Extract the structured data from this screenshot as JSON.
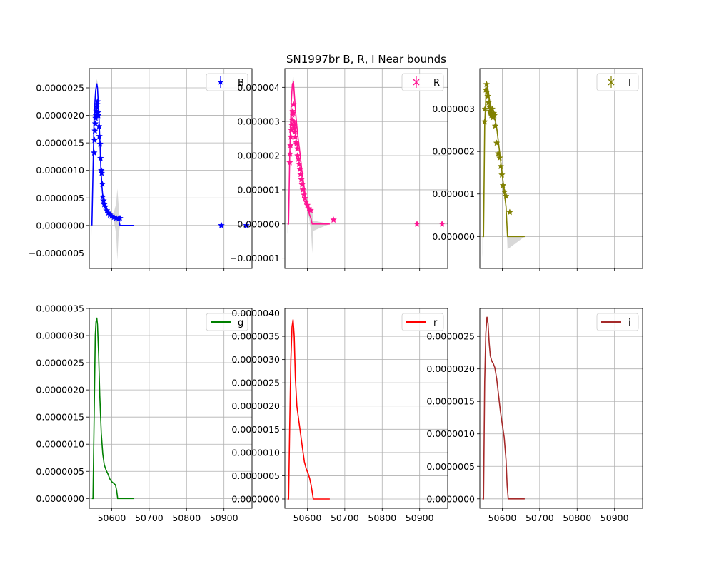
{
  "figure": {
    "title": "SN1997br  B, R, I Near bounds"
  },
  "chart_data": [
    {
      "type": "line",
      "panel": "top-left",
      "legend": "top-right",
      "grid": true,
      "xlim": [
        50540,
        50975
      ],
      "ylim": [
        -7.8e-07,
        2.85e-06
      ],
      "xticks": [
        50600,
        50700,
        50800,
        50900
      ],
      "show_xticklabels": false,
      "yticks": [
        -5e-07,
        0,
        5e-07,
        1e-06,
        1.5e-06,
        2e-06,
        2.5e-06
      ],
      "ytick_labels": [
        "−0.0000005",
        "0.0000000",
        "0.0000005",
        "0.0000010",
        "0.0000015",
        "0.0000020",
        "0.0000025"
      ],
      "series": [
        {
          "name": "B",
          "color": "#0000ff",
          "marker_style": "errorbar",
          "model": {
            "x": [
              50547,
              50553,
              50557,
              50560,
              50562,
              50565,
              50568,
              50571,
              50574,
              50577,
              50580,
              50585,
              50590,
              50595,
              50600,
              50605,
              50612,
              50618,
              50622,
              50660
            ],
            "y": [
              0,
              2e-06,
              2.45e-06,
              2.58e-06,
              2.5e-06,
              2.1e-06,
              1.6e-06,
              1.05e-06,
              7e-07,
              4.6e-07,
              3.6e-07,
              2.8e-07,
              2.3e-07,
              2e-07,
              1.8e-07,
              1.6e-07,
              1.4e-07,
              1.2e-07,
              0,
              0
            ]
          },
          "band": {
            "x": [
              50547,
              50553,
              50557,
              50560,
              50562,
              50565,
              50568,
              50571,
              50574,
              50577,
              50580,
              50585,
              50590,
              50595,
              50600,
              50605,
              50612,
              50615,
              50618,
              50622,
              50660
            ],
            "lower": [
              -2e-07,
              1.9e-06,
              2.35e-06,
              2.5e-06,
              2.4e-06,
              2e-06,
              1.5e-06,
              1e-06,
              6.5e-07,
              4.3e-07,
              3.3e-07,
              2.5e-07,
              2e-07,
              1.7e-07,
              1.4e-07,
              1e-07,
              -1.5e-07,
              -6.3e-07,
              -2e-07,
              0,
              0
            ],
            "upper": [
              1e-08,
              2.1e-06,
              2.55e-06,
              2.66e-06,
              2.6e-06,
              2.2e-06,
              1.7e-06,
              1.1e-06,
              7.5e-07,
              4.9e-07,
              3.9e-07,
              3.1e-07,
              2.6e-07,
              2.3e-07,
              2.2e-07,
              2.2e-07,
              4e-07,
              6.7e-07,
              4e-07,
              0,
              0
            ]
          },
          "points": {
            "x": [
              50553,
              50554,
              50555,
              50556,
              50557,
              50558,
              50559,
              50560,
              50561,
              50562,
              50563,
              50564,
              50566,
              50567,
              50569,
              50570,
              50572,
              50573,
              50575,
              50576,
              50578,
              50580,
              50583,
              50587,
              50591,
              50595,
              50600,
              50606,
              50612,
              50618,
              50622,
              50893,
              50960
            ],
            "y": [
              1.32e-06,
              1.55e-06,
              1.72e-06,
              1.85e-06,
              1.95e-06,
              2e-06,
              2.08e-06,
              2.15e-06,
              2.2e-06,
              2.25e-06,
              2.05e-06,
              2e-06,
              1.8e-06,
              1.62e-06,
              1.48e-06,
              1.22e-06,
              1e-06,
              9.5e-07,
              7.5e-07,
              5.2e-07,
              4.5e-07,
              3.8e-07,
              3.4e-07,
              2.7e-07,
              2.3e-07,
              1.9e-07,
              1.7e-07,
              1.5e-07,
              1.35e-07,
              1.2e-07,
              1.3e-07,
              0,
              0
            ]
          }
        }
      ]
    },
    {
      "type": "line",
      "panel": "top-middle",
      "legend": "top-right",
      "grid": true,
      "xlim": [
        50540,
        50975
      ],
      "ylim": [
        -1.3e-06,
        4.55e-06
      ],
      "xticks": [
        50600,
        50700,
        50800,
        50900
      ],
      "show_xticklabels": false,
      "yticks": [
        -1e-06,
        0,
        1e-06,
        2e-06,
        3e-06,
        4e-06
      ],
      "ytick_labels": [
        "−0.000001",
        "0.000000",
        "0.000001",
        "0.000002",
        "0.000003",
        "0.000004"
      ],
      "series": [
        {
          "name": "R",
          "color": "#ff1493",
          "marker_style": "x",
          "model": {
            "x": [
              50547,
              50550,
              50553,
              50557,
              50560,
              50563,
              50566,
              50570,
              50575,
              50580,
              50585,
              50590,
              50595,
              50600,
              50605,
              50610,
              50613,
              50616,
              50660
            ],
            "y": [
              0,
              0,
              2e-06,
              3.55e-06,
              4.1e-06,
              4.15e-06,
              3.7e-06,
              3.1e-06,
              2.55e-06,
              2.1e-06,
              1.6e-06,
              1.2e-06,
              8e-07,
              5e-07,
              3e-07,
              1.5e-07,
              0,
              0,
              0
            ]
          },
          "band": {
            "x": [
              50547,
              50550,
              50553,
              50557,
              50560,
              50563,
              50566,
              50570,
              50575,
              50580,
              50585,
              50590,
              50595,
              50600,
              50605,
              50610,
              50613,
              50616,
              50660
            ],
            "lower": [
              -3e-07,
              0,
              1.9e-06,
              3.45e-06,
              4e-06,
              4.05e-06,
              3.6e-06,
              3e-06,
              2.45e-06,
              2e-06,
              1.5e-06,
              1.1e-06,
              7e-07,
              4e-07,
              1.5e-07,
              -2e-07,
              -8.5e-07,
              -2e-07,
              0
            ],
            "upper": [
              0,
              0,
              2.1e-06,
              3.65e-06,
              4.2e-06,
              4.3e-06,
              3.8e-06,
              3.2e-06,
              2.65e-06,
              2.2e-06,
              1.7e-06,
              1.3e-06,
              9e-07,
              6e-07,
              4.5e-07,
              5e-07,
              4e-07,
              1e-07,
              0
            ]
          },
          "points": {
            "x": [
              50553,
              50554,
              50555,
              50556,
              50557,
              50558,
              50559,
              50560,
              50561,
              50562,
              50563,
              50564,
              50565,
              50566,
              50567,
              50568,
              50570,
              50571,
              50573,
              50574,
              50576,
              50578,
              50580,
              50582,
              50584,
              50586,
              50588,
              50591,
              50594,
              50597,
              50600,
              50604,
              50609,
              50670,
              50893,
              50960
            ],
            "y": [
              1.8e-06,
              2.05e-06,
              2.3e-06,
              2.55e-06,
              2.75e-06,
              2.9e-06,
              3.05e-06,
              3.2e-06,
              3.3e-06,
              3.25e-06,
              3.5e-06,
              3e-06,
              2.8e-06,
              2.9e-06,
              2.7e-06,
              2.55e-06,
              2.4e-06,
              2.35e-06,
              2.2e-06,
              2e-06,
              1.9e-06,
              1.75e-06,
              1.6e-06,
              1.45e-06,
              1.3e-06,
              1.15e-06,
              1e-06,
              8.5e-07,
              7.5e-07,
              6.5e-07,
              5.5e-07,
              4.5e-07,
              4e-07,
              1.2e-07,
              0,
              0
            ]
          }
        }
      ]
    },
    {
      "type": "line",
      "panel": "top-right",
      "legend": "top-right",
      "grid": true,
      "xlim": [
        50540,
        50975
      ],
      "ylim": [
        -7.5e-07,
        3.95e-06
      ],
      "xticks": [
        50600,
        50700,
        50800,
        50900
      ],
      "show_xticklabels": false,
      "yticks": [
        0,
        1e-06,
        2e-06,
        3e-06
      ],
      "ytick_labels": [
        "0.000000",
        "0.000001",
        "0.000002",
        "0.000003"
      ],
      "series": [
        {
          "name": "I",
          "color": "#808000",
          "marker_style": "x",
          "model": {
            "x": [
              50547,
              50550,
              50553,
              50557,
              50560,
              50563,
              50566,
              50570,
              50574,
              50578,
              50582,
              50586,
              50590,
              50594,
              50598,
              50602,
              50606,
              50610,
              50614,
              50660
            ],
            "y": [
              0,
              0,
              2.6e-06,
              3.45e-06,
              3.52e-06,
              3.4e-06,
              3.2e-06,
              3e-06,
              2.9e-06,
              2.85e-06,
              2.7e-06,
              2.5e-06,
              2.2e-06,
              1.9e-06,
              1.6e-06,
              1.3e-06,
              1e-06,
              7e-07,
              0,
              0
            ]
          },
          "band": {
            "x": [
              50547,
              50550,
              50553,
              50557,
              50560,
              50563,
              50566,
              50570,
              50574,
              50578,
              50582,
              50586,
              50590,
              50594,
              50598,
              50602,
              50606,
              50610,
              50614,
              50660
            ],
            "lower": [
              -5e-07,
              0,
              2.5e-06,
              3.35e-06,
              3.42e-06,
              3.3e-06,
              3.1e-06,
              2.9e-06,
              2.8e-06,
              2.75e-06,
              2.6e-06,
              2.4e-06,
              2.1e-06,
              1.8e-06,
              1.5e-06,
              1.2e-06,
              9e-07,
              6e-07,
              -3e-07,
              0
            ],
            "upper": [
              0,
              0,
              2.7e-06,
              3.55e-06,
              3.62e-06,
              3.5e-06,
              3.3e-06,
              3.1e-06,
              3e-06,
              2.95e-06,
              2.8e-06,
              2.6e-06,
              2.3e-06,
              2e-06,
              1.7e-06,
              1.4e-06,
              1.1e-06,
              8e-07,
              0,
              0
            ]
          },
          "points": {
            "x": [
              50553,
              50554,
              50556,
              50558,
              50559,
              50561,
              50563,
              50565,
              50567,
              50569,
              50571,
              50573,
              50575,
              50577,
              50579,
              50581,
              50585,
              50589,
              50593,
              50596,
              50599,
              50602,
              50606,
              50610,
              50620
            ],
            "y": [
              2.7e-06,
              3e-06,
              3.45e-06,
              3.58e-06,
              3.4e-06,
              3.3e-06,
              3.15e-06,
              3.05e-06,
              2.95e-06,
              2.9e-06,
              2.85e-06,
              3e-06,
              2.8e-06,
              2.9e-06,
              2.85e-06,
              2.6e-06,
              2.2e-06,
              1.95e-06,
              1.85e-06,
              1.65e-06,
              1.45e-06,
              1.2e-06,
              1.05e-06,
              9.5e-07,
              5.7e-07
            ]
          }
        }
      ]
    },
    {
      "type": "line",
      "panel": "bottom-left",
      "legend": "top-right",
      "grid": true,
      "xlim": [
        50540,
        50975
      ],
      "ylim": [
        -1.8e-07,
        3.5e-06
      ],
      "xticks": [
        50600,
        50700,
        50800,
        50900
      ],
      "show_xticklabels": true,
      "xtick_labels": [
        "50600",
        "50700",
        "50800",
        "50900"
      ],
      "yticks": [
        0,
        5e-07,
        1e-06,
        1.5e-06,
        2e-06,
        2.5e-06,
        3e-06,
        3.5e-06
      ],
      "ytick_labels": [
        "0.0000000",
        "0.0000005",
        "0.0000010",
        "0.0000015",
        "0.0000020",
        "0.0000025",
        "0.0000030",
        "0.0000035"
      ],
      "series": [
        {
          "name": "g",
          "color": "#008000",
          "model": {
            "x": [
              50547,
              50550,
              50553,
              50556,
              50558,
              50560,
              50562,
              50565,
              50568,
              50572,
              50576,
              50580,
              50585,
              50590,
              50595,
              50600,
              50605,
              50610,
              50613,
              50616,
              50660
            ],
            "y": [
              0,
              0,
              1.5e-06,
              3e-06,
              3.25e-06,
              3.33e-06,
              3.2e-06,
              2.65e-06,
              1.9e-06,
              1.2e-06,
              8.2e-07,
              6.2e-07,
              5.2e-07,
              4.5e-07,
              3.6e-07,
              3.1e-07,
              2.8e-07,
              2.5e-07,
              1.5e-07,
              0,
              0
            ]
          }
        }
      ]
    },
    {
      "type": "line",
      "panel": "bottom-middle",
      "legend": "top-right",
      "grid": true,
      "xlim": [
        50540,
        50975
      ],
      "ylim": [
        -2e-07,
        4.1e-06
      ],
      "xticks": [
        50600,
        50700,
        50800,
        50900
      ],
      "show_xticklabels": true,
      "xtick_labels": [
        "50600",
        "50700",
        "50800",
        "50900"
      ],
      "yticks": [
        0,
        5e-07,
        1e-06,
        1.5e-06,
        2e-06,
        2.5e-06,
        3e-06,
        3.5e-06,
        4e-06
      ],
      "ytick_labels": [
        "0.0000000",
        "0.0000005",
        "0.0000010",
        "0.0000015",
        "0.0000020",
        "0.0000025",
        "0.0000030",
        "0.0000035",
        "0.0000040"
      ],
      "series": [
        {
          "name": "r",
          "color": "#ff0000",
          "model": {
            "x": [
              50547,
              50550,
              50553,
              50556,
              50559,
              50562,
              50565,
              50568,
              50572,
              50577,
              50582,
              50587,
              50592,
              50597,
              50602,
              50606,
              50610,
              50613,
              50616,
              50660
            ],
            "y": [
              0,
              0,
              1.6e-06,
              3e-06,
              3.7e-06,
              3.86e-06,
              3.5e-06,
              2.6e-06,
              2e-06,
              1.7e-06,
              1.4e-06,
              1.1e-06,
              8e-07,
              6.5e-07,
              5.5e-07,
              4.5e-07,
              3e-07,
              1.5e-07,
              0,
              0
            ]
          }
        }
      ]
    },
    {
      "type": "line",
      "panel": "bottom-right",
      "legend": "top-right",
      "grid": true,
      "xlim": [
        50540,
        50975
      ],
      "ylim": [
        -1.45e-07,
        2.93e-06
      ],
      "xticks": [
        50600,
        50700,
        50800,
        50900
      ],
      "show_xticklabels": true,
      "xtick_labels": [
        "50600",
        "50700",
        "50800",
        "50900"
      ],
      "yticks": [
        0,
        5e-07,
        1e-06,
        1.5e-06,
        2e-06,
        2.5e-06
      ],
      "ytick_labels": [
        "0.0000000",
        "0.0000005",
        "0.0000010",
        "0.0000015",
        "0.0000020",
        "0.0000025"
      ],
      "series": [
        {
          "name": "i",
          "color": "#a52a2a",
          "model": {
            "x": [
              50547,
              50550,
              50553,
              50556,
              50559,
              50562,
              50565,
              50568,
              50572,
              50576,
              50580,
              50585,
              50590,
              50595,
              50600,
              50605,
              50610,
              50613,
              50616,
              50660
            ],
            "y": [
              0,
              0,
              1.8e-06,
              2.55e-06,
              2.8e-06,
              2.7e-06,
              2.4e-06,
              2.2e-06,
              2.12e-06,
              2.08e-06,
              2.02e-06,
              1.85e-06,
              1.6e-06,
              1.35e-06,
              1.15e-06,
              9.5e-07,
              6e-07,
              2e-07,
              0,
              0
            ]
          }
        }
      ]
    }
  ]
}
